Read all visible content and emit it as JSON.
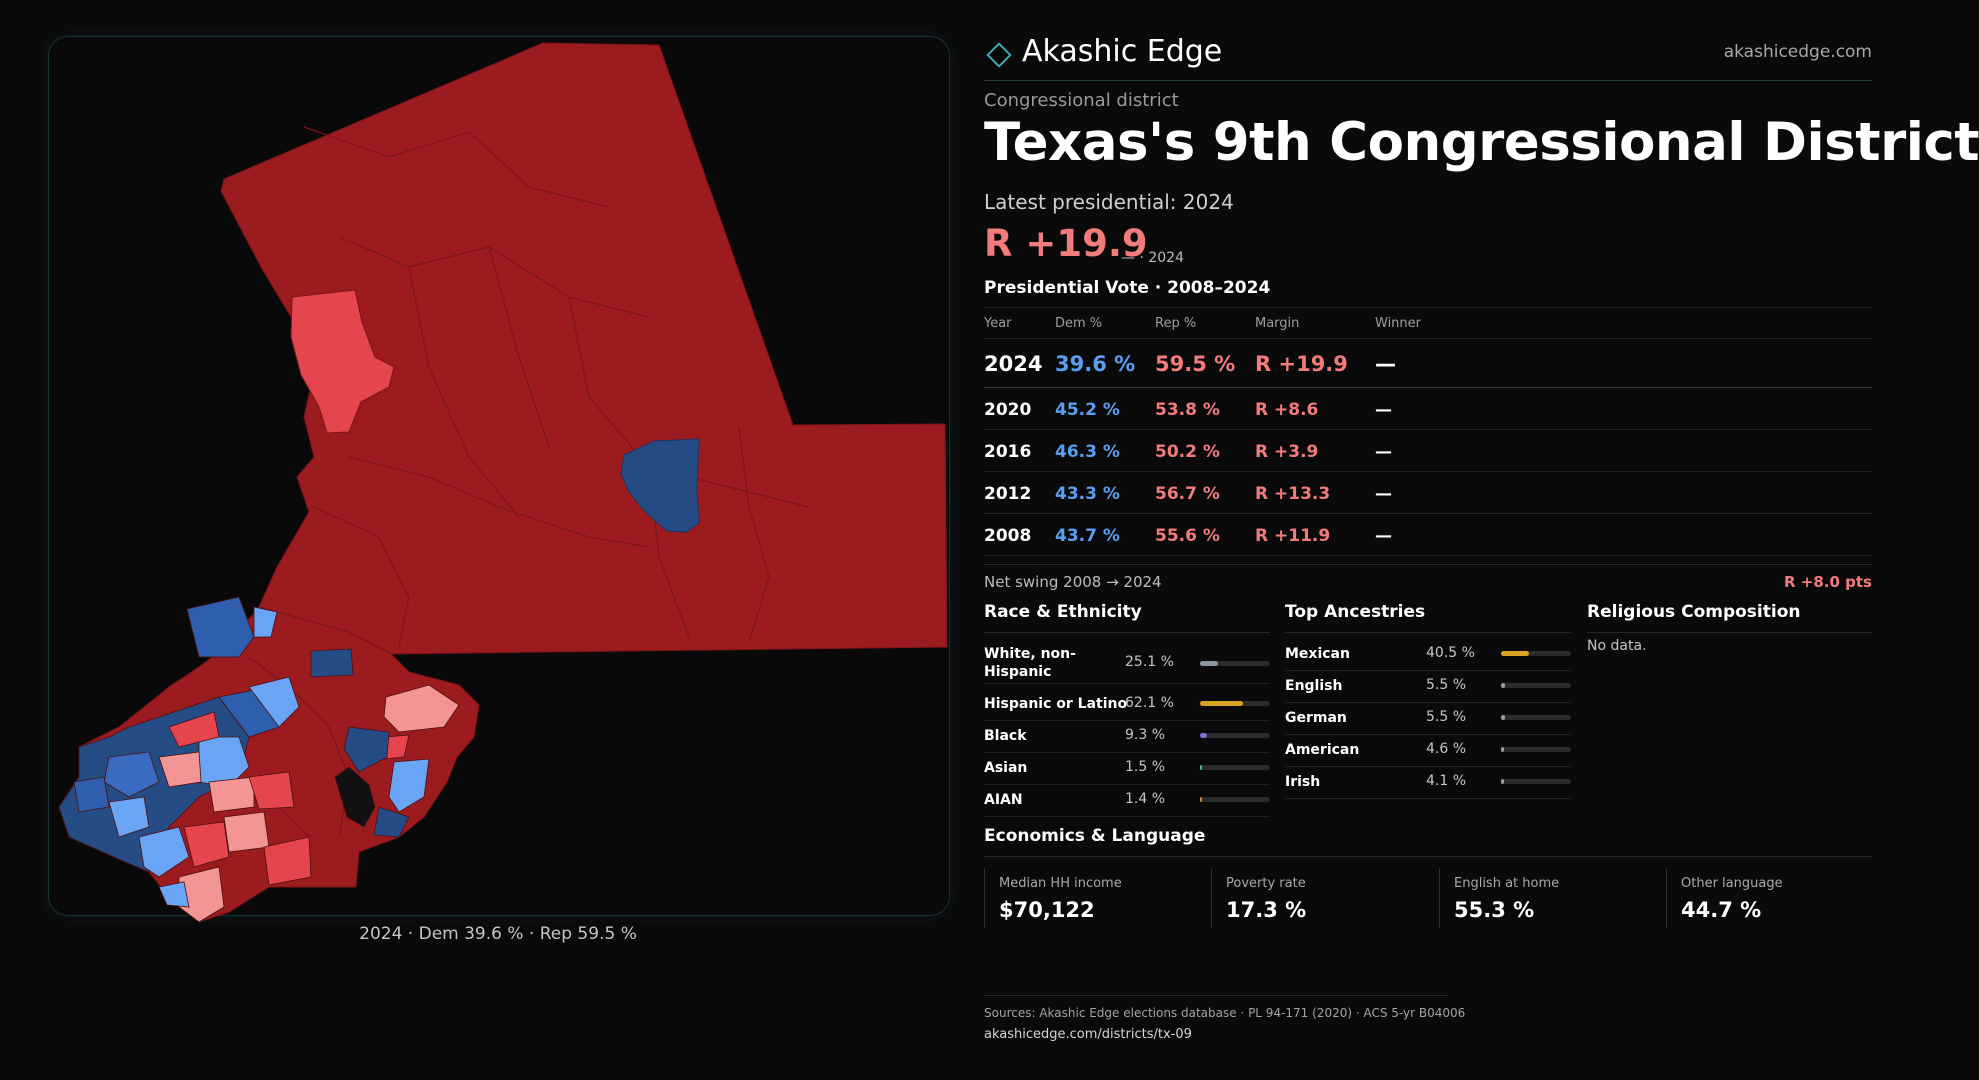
{
  "brand": {
    "name": "Akashic Edge",
    "url": "akashicedge.com",
    "logo_icon": "diamond-logo-icon"
  },
  "header": {
    "eyebrow": "Congressional district",
    "title": "Texas's  9th Congressional District",
    "latest_label": "Latest presidential: 2024",
    "margin": "R +19.9",
    "margin_year": "— · 2024"
  },
  "map": {
    "caption": "2024 · Dem 39.6 % · Rep 59.5 %"
  },
  "vote_table": {
    "title": "Presidential Vote · 2008–2024",
    "headers": {
      "year": "Year",
      "dem": "Dem %",
      "rep": "Rep %",
      "margin": "Margin",
      "winner": "Winner"
    },
    "rows": [
      {
        "year": "2024",
        "dem": "39.6 %",
        "rep": "59.5 %",
        "margin": "R +19.9",
        "winner": "—"
      },
      {
        "year": "2020",
        "dem": "45.2 %",
        "rep": "53.8 %",
        "margin": "R +8.6",
        "winner": "—"
      },
      {
        "year": "2016",
        "dem": "46.3 %",
        "rep": "50.2 %",
        "margin": "R +3.9",
        "winner": "—"
      },
      {
        "year": "2012",
        "dem": "43.3 %",
        "rep": "56.7 %",
        "margin": "R +13.3",
        "winner": "—"
      },
      {
        "year": "2008",
        "dem": "43.7 %",
        "rep": "55.6 %",
        "margin": "R +11.9",
        "winner": "—"
      }
    ]
  },
  "swing": {
    "label": "Net swing 2008 → 2024",
    "value": "R +8.0 pts"
  },
  "race": {
    "title": "Race & Ethnicity",
    "rows": [
      {
        "label": "White, non-Hispanic",
        "value": "25.1 %",
        "pct": 25.1,
        "color": "#8e96a3"
      },
      {
        "label": "Hispanic or Latino",
        "value": "62.1 %",
        "pct": 62.1,
        "color": "#d9a325"
      },
      {
        "label": "Black",
        "value": "9.3 %",
        "pct": 9.3,
        "color": "#7f6fd6"
      },
      {
        "label": "Asian",
        "value": "1.5 %",
        "pct": 1.5,
        "color": "#3fb6a6"
      },
      {
        "label": "AIAN",
        "value": "1.4 %",
        "pct": 1.4,
        "color": "#c7883a"
      }
    ]
  },
  "ancestry": {
    "title": "Top Ancestries",
    "rows": [
      {
        "label": "Mexican",
        "value": "40.5 %",
        "pct": 40.5,
        "color": "#d9a325"
      },
      {
        "label": "English",
        "value": "5.5 %",
        "pct": 5.5,
        "color": "#9a9a9a"
      },
      {
        "label": "German",
        "value": "5.5 %",
        "pct": 5.5,
        "color": "#9a9a9a"
      },
      {
        "label": "American",
        "value": "4.6 %",
        "pct": 4.6,
        "color": "#9a9a9a"
      },
      {
        "label": "Irish",
        "value": "4.1 %",
        "pct": 4.1,
        "color": "#9a9a9a"
      }
    ]
  },
  "religion": {
    "title": "Religious Composition",
    "empty_text": "No data."
  },
  "economics": {
    "title": "Economics & Language",
    "cells": [
      {
        "label": "Median HH income",
        "value": "$70,122"
      },
      {
        "label": "Poverty rate",
        "value": "17.3 %"
      },
      {
        "label": "English at home",
        "value": "55.3 %"
      },
      {
        "label": "Other language",
        "value": "44.7 %"
      }
    ]
  },
  "sources": {
    "text": "Sources: Akashic Edge elections database · PL 94-171 (2020) · ACS 5-yr B04006",
    "url": "akashicedge.com/districts/tx-09"
  }
}
